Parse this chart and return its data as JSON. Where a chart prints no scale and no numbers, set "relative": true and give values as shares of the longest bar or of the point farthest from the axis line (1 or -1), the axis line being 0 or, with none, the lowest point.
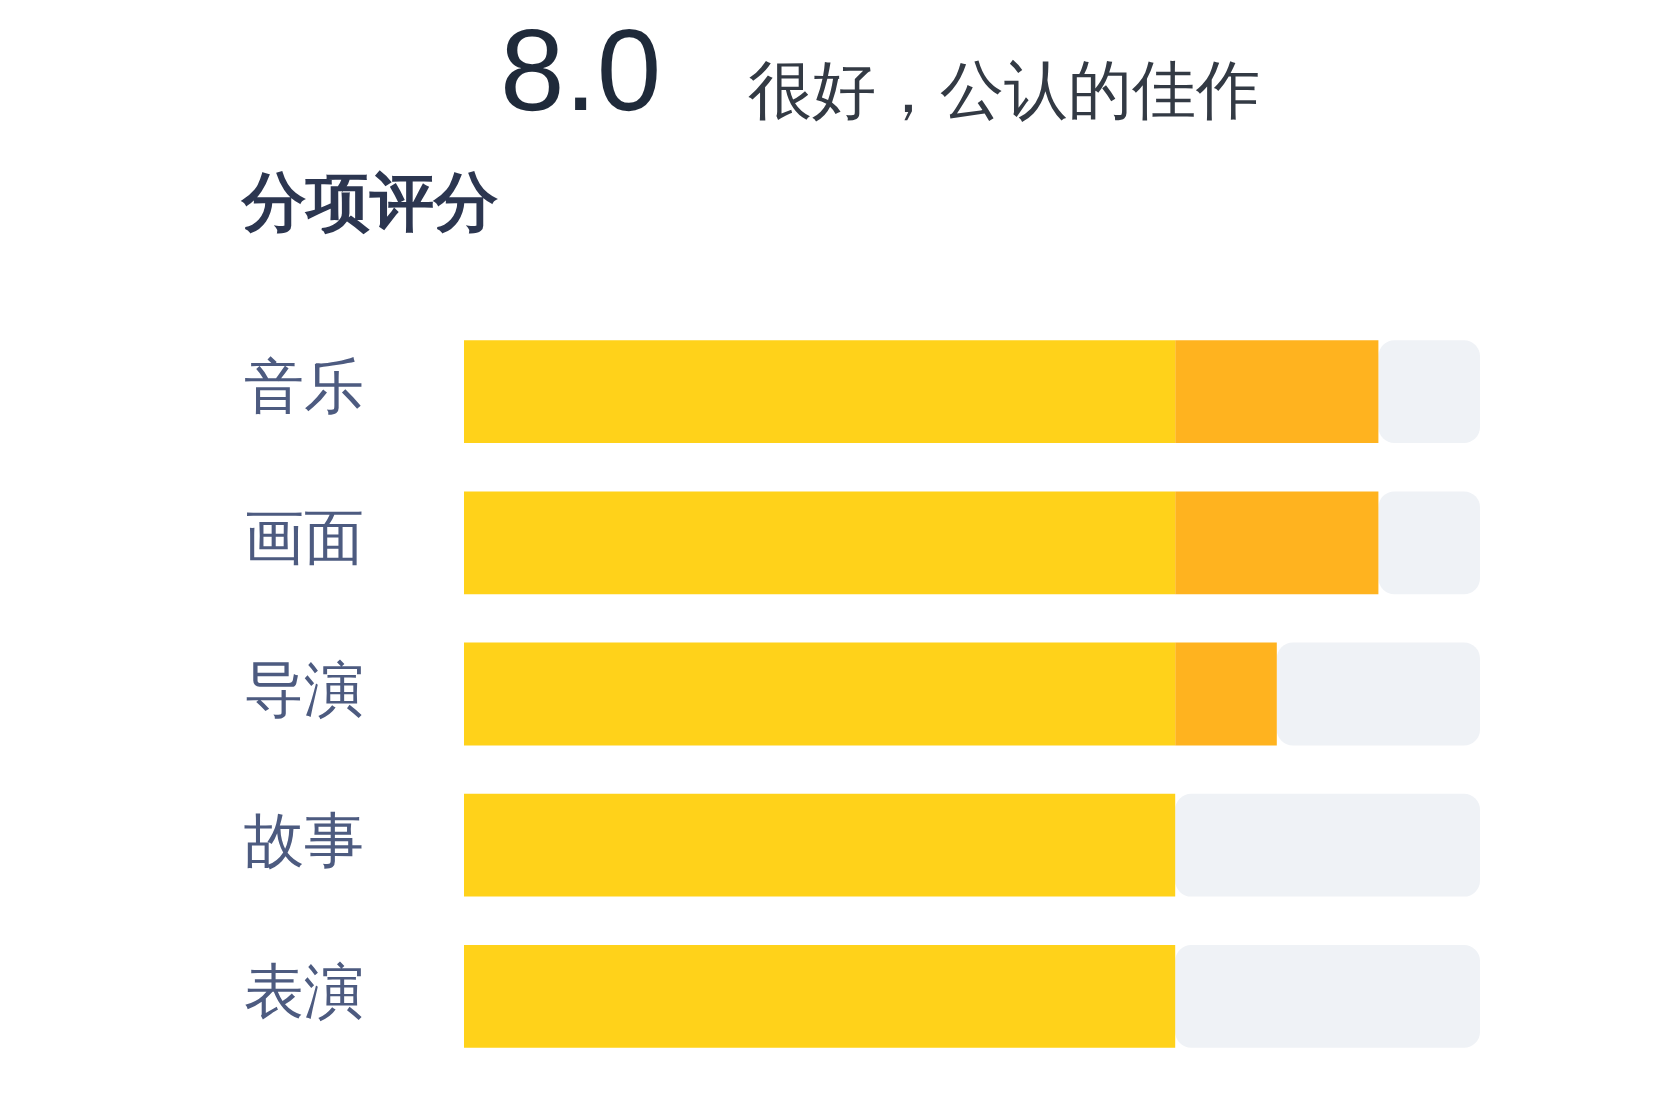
{
  "chart_data": {
    "type": "bar",
    "orientation": "horizontal",
    "stacked": true,
    "relative": true,
    "title": "分项评分",
    "annotations": [
      "8.0",
      "很好，公认的佳作"
    ],
    "categories": [
      "音乐",
      "画面",
      "导演",
      "故事",
      "表演"
    ],
    "series": [
      {
        "color": "#ffd21a",
        "values": [
          0.7,
          0.7,
          0.7,
          0.7,
          0.7
        ]
      },
      {
        "color": "#ffb31f",
        "values": [
          0.2,
          0.2,
          0.1,
          null,
          null
        ]
      },
      {
        "color": "#eff2f6",
        "values": [
          0.1,
          0.1,
          0.2,
          0.3,
          0.3
        ]
      }
    ],
    "legend": false
  }
}
